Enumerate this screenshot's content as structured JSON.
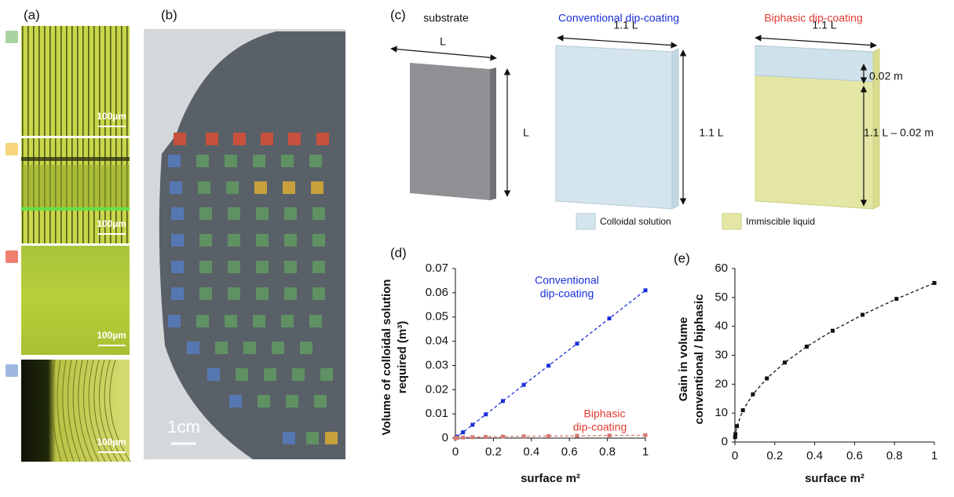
{
  "panel_labels": [
    "(a)",
    "(b)",
    "(c)",
    "(d)",
    "(e)"
  ],
  "panel_a": {
    "scale_bars": [
      "100µm",
      "100µm",
      "100µm",
      "100µm"
    ]
  },
  "panel_b": {
    "scale_bar": "1cm"
  },
  "panel_c": {
    "titles": [
      "substrate",
      "Conventional dip-coating",
      "Biphasic dip-coating"
    ],
    "dimension_labels": [
      "L",
      "L",
      "1.1 L",
      "1.1 L",
      "1.1 L",
      "0.02 m",
      "1.1 L – 0.02 m"
    ],
    "legend": [
      "Colloidal solution",
      "Immiscible liquid"
    ]
  },
  "chart_data": [
    {
      "type": "line",
      "line_style": "dashed",
      "marker": "square",
      "x": [
        0,
        0.0025,
        0.01,
        0.04,
        0.09,
        0.16,
        0.25,
        0.36,
        0.49,
        0.64,
        0.81,
        1
      ],
      "series": [
        {
          "color": "#1a30d8",
          "values": [
            0,
            0.00015,
            0.0006,
            0.0024,
            0.0055,
            0.0098,
            0.0153,
            0.022,
            0.0299,
            0.039,
            0.0494,
            0.061
          ]
        },
        {
          "color": "#d47a72",
          "values": [
            0,
            6e-05,
            0.00014,
            0.00026,
            0.00038,
            0.0005,
            0.00062,
            0.00074,
            0.00086,
            0.00098,
            0.0011,
            0.0012
          ]
        }
      ],
      "annotations": [
        {
          "lines": [
            "Conventional",
            "dip-coating"
          ],
          "color": "#1a30d8"
        },
        {
          "lines": [
            "Biphasic",
            "dip-coating"
          ],
          "color": "#e03a30"
        }
      ],
      "xlabel": "surface m²",
      "ylabel": [
        "Volume of colloidal solution",
        "required (m³)"
      ],
      "xlim": [
        0,
        1
      ],
      "xticks": [
        0,
        0.2,
        0.4,
        0.6,
        0.8,
        1
      ],
      "ylim": [
        0,
        0.07
      ],
      "yticks": [
        0,
        0.01,
        0.02,
        0.03,
        0.04,
        0.05,
        0.06,
        0.07
      ]
    },
    {
      "type": "line",
      "line_style": "dashed",
      "marker": "square",
      "x": [
        0.001,
        0.0025,
        0.01,
        0.04,
        0.09,
        0.16,
        0.25,
        0.36,
        0.49,
        0.64,
        0.81,
        1
      ],
      "series": [
        {
          "color": "#111111",
          "values": [
            1.7,
            2.75,
            5.5,
            11,
            16.5,
            22,
            27.5,
            33,
            38.5,
            44,
            49.5,
            55
          ]
        }
      ],
      "xlabel": "surface m²",
      "ylabel": [
        "Gain in volume",
        "conventional / biphasic"
      ],
      "xlim": [
        0,
        1
      ],
      "xticks": [
        0,
        0.2,
        0.4,
        0.6,
        0.8,
        1
      ],
      "ylim": [
        0,
        60
      ],
      "yticks": [
        0,
        10,
        20,
        30,
        40,
        50,
        60
      ]
    }
  ]
}
